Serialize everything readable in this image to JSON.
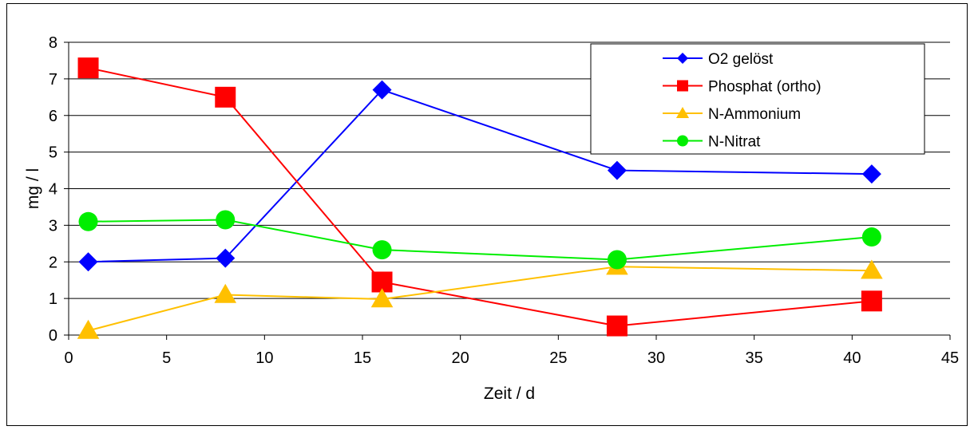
{
  "chart_data": {
    "type": "line",
    "title": "",
    "xlabel": "Zeit / d",
    "ylabel": "mg / l",
    "xlim": [
      0,
      45
    ],
    "ylim": [
      0,
      8
    ],
    "xticks": [
      0,
      5,
      10,
      15,
      20,
      25,
      30,
      35,
      40,
      45
    ],
    "yticks": [
      0,
      1,
      2,
      3,
      4,
      5,
      6,
      7,
      8
    ],
    "grid": "horizontal",
    "legend_position": "top-right",
    "x": [
      1,
      8,
      16,
      28,
      41
    ],
    "series": [
      {
        "name": "O2 gelöst",
        "values": [
          2.0,
          2.1,
          6.7,
          4.5,
          4.4
        ],
        "color": "#0000FF",
        "marker": "diamond"
      },
      {
        "name": "Phosphat (ortho)",
        "values": [
          7.3,
          6.5,
          1.45,
          0.25,
          0.93
        ],
        "color": "#FF0000",
        "marker": "square"
      },
      {
        "name": "N-Ammonium",
        "values": [
          0.12,
          1.1,
          0.98,
          1.87,
          1.76
        ],
        "color": "#FFC000",
        "marker": "triangle"
      },
      {
        "name": "N-Nitrat",
        "values": [
          3.1,
          3.15,
          2.33,
          2.06,
          2.68
        ],
        "color": "#00EE00",
        "marker": "circle"
      }
    ]
  }
}
